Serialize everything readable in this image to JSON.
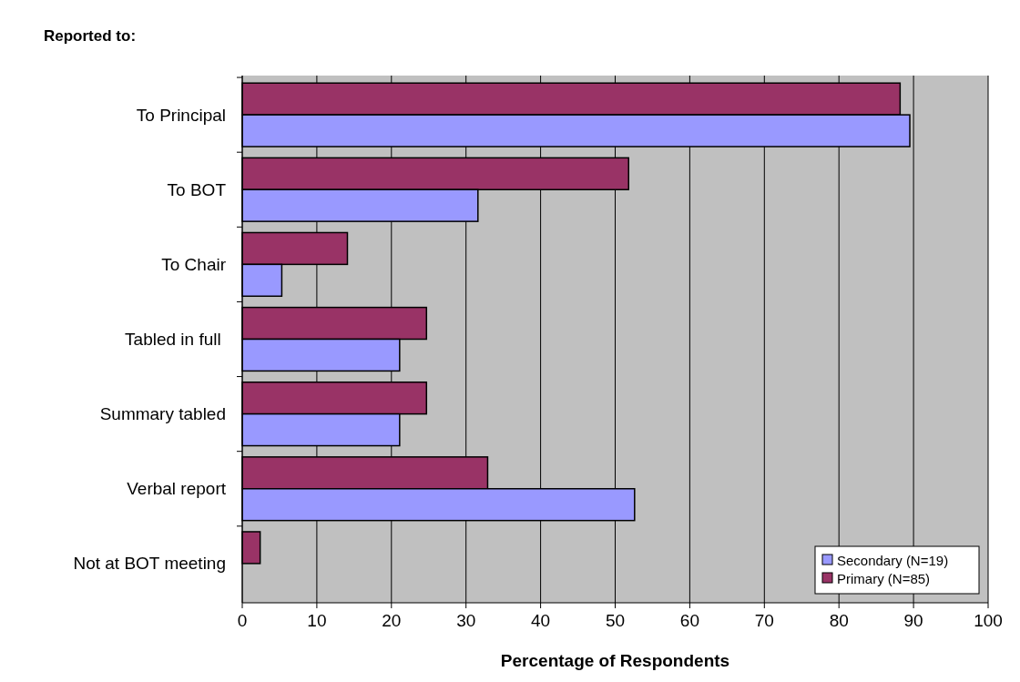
{
  "chart_data": {
    "type": "bar",
    "orientation": "horizontal",
    "title": "Reported to:",
    "xlabel": "Percentage of Respondents",
    "categories": [
      "To Principal",
      "To BOT",
      "To Chair",
      "Tabled in full ",
      "Summary tabled",
      "Verbal report",
      "Not at BOT meeting"
    ],
    "series": [
      {
        "name": "Primary (N=85)",
        "color": "#993366",
        "values": [
          88.2,
          51.8,
          14.1,
          24.7,
          24.7,
          32.9,
          2.4
        ]
      },
      {
        "name": "Secondary (N=19)",
        "color": "#9999ff",
        "values": [
          89.5,
          31.6,
          5.3,
          21.1,
          21.1,
          52.6,
          0
        ]
      }
    ],
    "xlim": [
      0,
      100
    ],
    "xticks": [
      0,
      10,
      20,
      30,
      40,
      50,
      60,
      70,
      80,
      90,
      100
    ],
    "grid": "x",
    "legend": "bottom right"
  }
}
